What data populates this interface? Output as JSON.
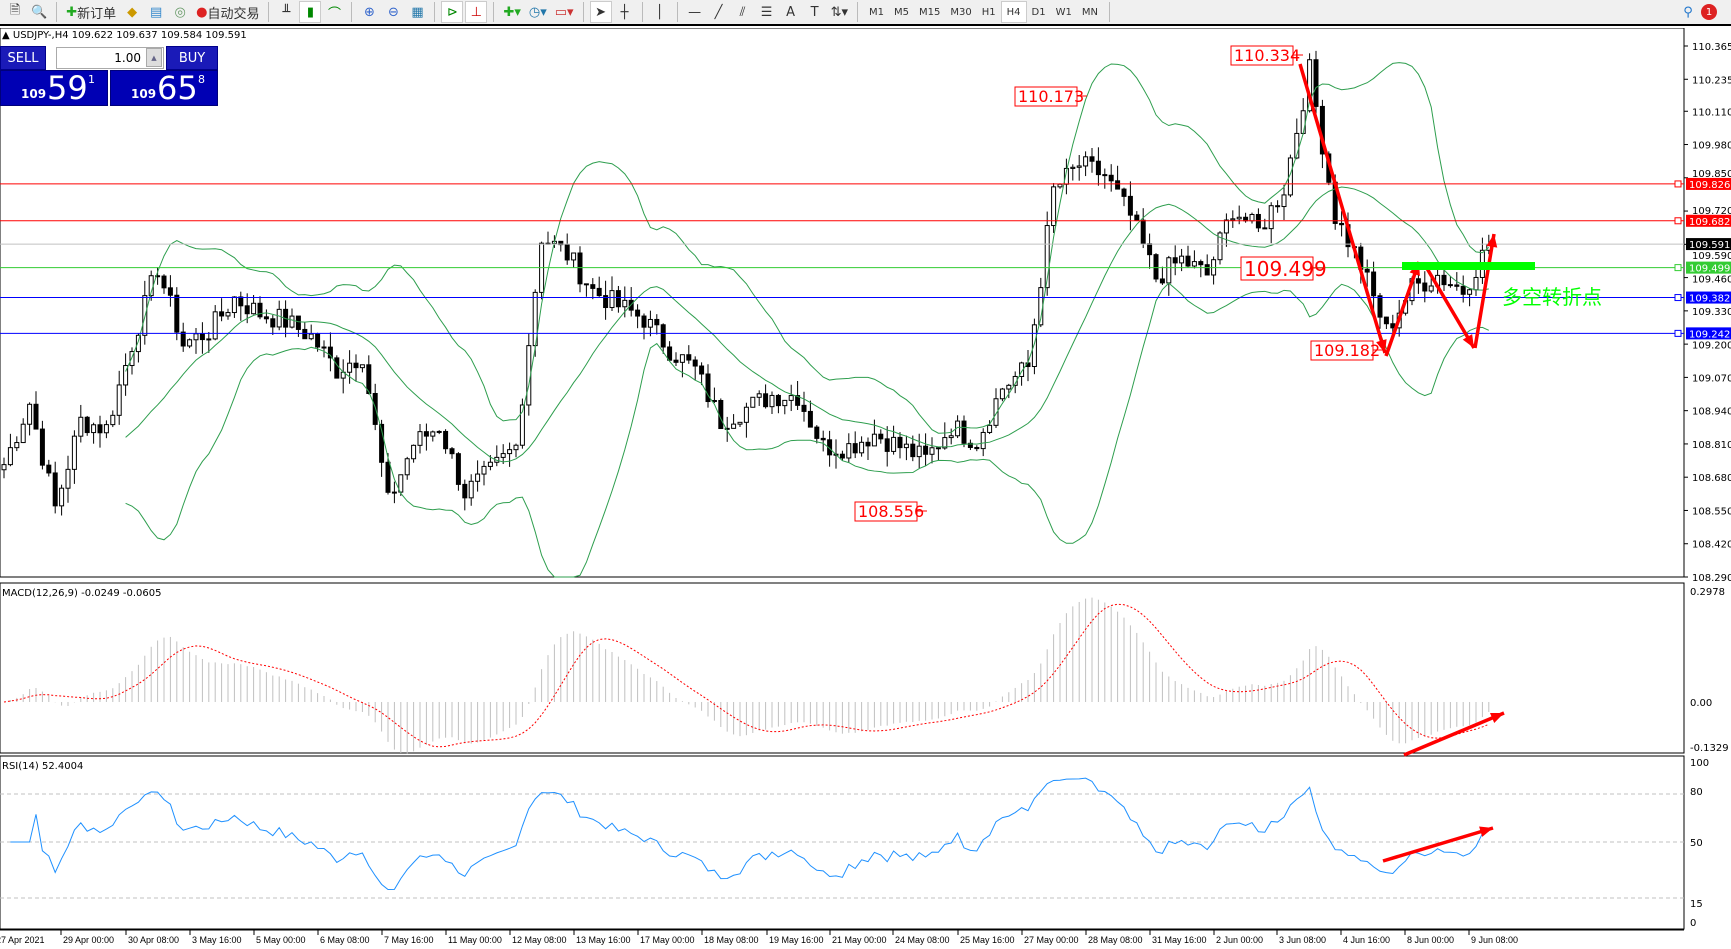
{
  "toolbar": {
    "new_order": "新订单",
    "auto_trading": "自动交易",
    "timeframes": [
      "M1",
      "M5",
      "M15",
      "M30",
      "H1",
      "H4",
      "D1",
      "W1",
      "MN"
    ],
    "active_timeframe": "H4",
    "notification_count": "1"
  },
  "chart": {
    "symbol_line": "USDJPY-,H4  109.622 109.637 109.584 109.591",
    "trade_panel": {
      "sell": "SELL",
      "buy": "BUY",
      "lots": "1.00",
      "bid": {
        "big": "109",
        "main": "59",
        "sup": "1"
      },
      "ask": {
        "big": "109",
        "main": "65",
        "sup": "8"
      }
    },
    "price_axis": [
      "110.365",
      "110.235",
      "110.110",
      "109.980",
      "109.850",
      "109.720",
      "109.590",
      "109.460",
      "109.330",
      "109.200",
      "109.070",
      "108.940",
      "108.810",
      "108.680",
      "108.550",
      "108.420",
      "108.290"
    ],
    "price_range": [
      108.29,
      110.365
    ],
    "hlines": [
      {
        "price": "109.826",
        "color": "#ff0000"
      },
      {
        "price": "109.682",
        "color": "#ff0000"
      },
      {
        "price": "109.591",
        "color": "#c0c0c0",
        "tag": "#000000"
      },
      {
        "price": "109.499",
        "color": "#33cc33"
      },
      {
        "price": "109.382",
        "color": "#0000ff"
      },
      {
        "price": "109.242",
        "color": "#0000ff"
      }
    ],
    "price_labels": [
      "110.334",
      "110.173",
      "108.556",
      "109.499",
      "109.182"
    ],
    "annotation": "多空转折点",
    "closes_every_4_bars": [
      108.73,
      108.97,
      108.56,
      108.9,
      108.87,
      109.2,
      109.5,
      109.2,
      109.25,
      109.38,
      109.32,
      109.29,
      109.23,
      109.1,
      109.16,
      108.58,
      108.81,
      108.88,
      108.62,
      108.7,
      108.8,
      109.62,
      109.55,
      109.41,
      109.35,
      109.3,
      109.18,
      109.1,
      108.9,
      108.95,
      109.0,
      109.0,
      108.8,
      108.8,
      108.85,
      108.8,
      108.75,
      108.88,
      108.82,
      109.03,
      109.11,
      109.8,
      109.9,
      109.86,
      109.7,
      109.46,
      109.53,
      109.47,
      109.73,
      109.64,
      109.81,
      110.27,
      109.7,
      109.51,
      109.25,
      109.42,
      109.47,
      109.41,
      109.59
    ],
    "time_axis": [
      "27 Apr 2021",
      "29 Apr 00:00",
      "30 Apr 08:00",
      "3 May 16:00",
      "5 May 00:00",
      "6 May 08:00",
      "7 May 16:00",
      "11 May 00:00",
      "12 May 08:00",
      "13 May 16:00",
      "17 May 00:00",
      "18 May 08:00",
      "19 May 16:00",
      "21 May 00:00",
      "24 May 08:00",
      "25 May 16:00",
      "27 May 00:00",
      "28 May 08:00",
      "31 May 16:00",
      "2 Jun 00:00",
      "3 Jun 08:00",
      "4 Jun 16:00",
      "8 Jun 00:00",
      "9 Jun 08:00"
    ],
    "colors": {
      "bands": "#2e9e4e",
      "arrows": "#ff0000",
      "annotation": "#00ff00",
      "rsi": "#1e90ff",
      "macd_hist": "#c0c0c0",
      "macd_signal": "#ff0000"
    }
  },
  "macd": {
    "label": "MACD(12,26,9) -0.0249 -0.0605",
    "axis": [
      "0.2978",
      "0.00",
      "-0.1329"
    ]
  },
  "rsi": {
    "label": "RSI(14) 52.4004",
    "axis": [
      "100",
      "80",
      "50",
      "15",
      "0"
    ]
  }
}
